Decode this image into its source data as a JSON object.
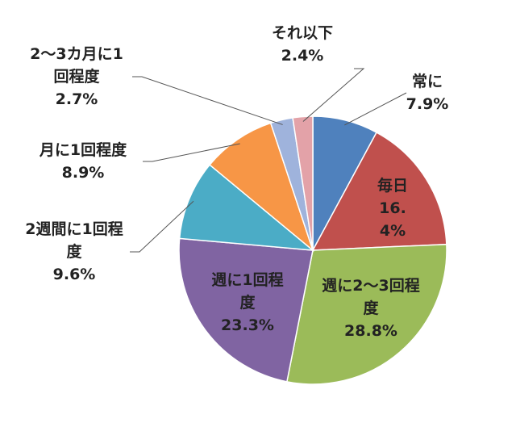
{
  "chart_data": {
    "type": "pie",
    "categories": [
      "常に",
      "毎日",
      "週に2～3回程度",
      "週に1回程度",
      "2週間に1回程度",
      "月に1回程度",
      "2～3カ月に1回程度",
      "それ以下"
    ],
    "values": [
      7.9,
      16.4,
      28.8,
      23.3,
      9.6,
      8.9,
      2.7,
      2.4
    ],
    "value_labels": [
      "7.9%",
      "16.4%",
      "28.8%",
      "23.3%",
      "9.6%",
      "8.9%",
      "2.7%",
      "2.4%"
    ],
    "colors": [
      "#4f81bd",
      "#c0504d",
      "#9bbb59",
      "#8064a2",
      "#4bacc6",
      "#f79646",
      "#9fb3dc",
      "#e3a2a8"
    ]
  }
}
